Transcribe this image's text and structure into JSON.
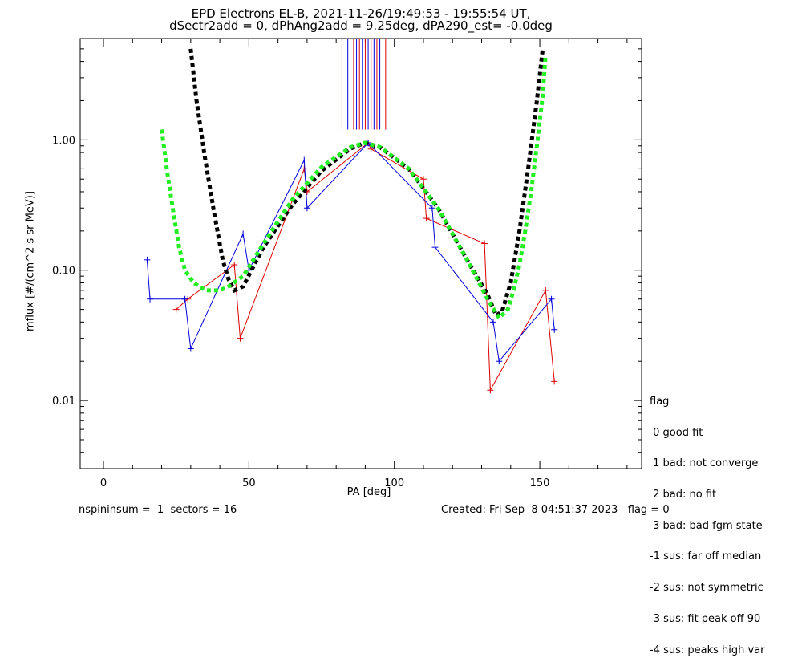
{
  "chart_data": {
    "type": "scatter",
    "title": "EPD Electrons EL-B, 2021-11-26/19:49:53 - 19:55:54 UT,",
    "subtitle": "dSectr2add = 0, dPhAng2add = 9.25deg, dPA290_est=  -0.0deg",
    "xlabel": "PA [deg]",
    "ylabel": "mflux [#/(cm^2 s sr MeV)]",
    "xlim": [
      -8,
      185
    ],
    "ylim": [
      0.003,
      6.0
    ],
    "yscale": "log",
    "xticks": [
      "0",
      "50",
      "100",
      "150"
    ],
    "yticks": [
      "0.01",
      "0.10",
      "1.00"
    ],
    "colors": {
      "red_series": "#dd0000",
      "blue_series": "#0000dd",
      "fit_black": "#000000",
      "fit_green": "#22ee22"
    },
    "series": [
      {
        "color": "red",
        "x": [
          25,
          29,
          45,
          47,
          69,
          70,
          91,
          92,
          110,
          111,
          131,
          133,
          152,
          155
        ],
        "y": [
          0.05,
          0.06,
          0.11,
          0.03,
          0.6,
          0.4,
          0.95,
          0.85,
          0.5,
          0.25,
          0.16,
          0.012,
          0.07,
          0.014
        ]
      },
      {
        "color": "blue",
        "x": [
          15,
          16,
          28,
          30,
          48,
          50,
          69,
          70,
          91,
          92,
          113,
          114,
          134,
          136,
          154,
          155
        ],
        "y": [
          0.12,
          0.06,
          0.06,
          0.025,
          0.19,
          0.1,
          0.7,
          0.3,
          0.95,
          0.9,
          0.3,
          0.15,
          0.04,
          0.02,
          0.06,
          0.035
        ]
      }
    ],
    "fits": [
      {
        "name": "black",
        "x": [
          30,
          32,
          35,
          38,
          41,
          43,
          45,
          48,
          55,
          65,
          75,
          85,
          90,
          95,
          105,
          115,
          125,
          132,
          135,
          137,
          140,
          143,
          146,
          149,
          151
        ],
        "y": [
          5.0,
          2.0,
          0.7,
          0.28,
          0.12,
          0.085,
          0.07,
          0.075,
          0.15,
          0.32,
          0.58,
          0.86,
          0.95,
          0.88,
          0.6,
          0.3,
          0.12,
          0.065,
          0.045,
          0.048,
          0.08,
          0.2,
          0.6,
          2.0,
          5.0
        ]
      },
      {
        "name": "green",
        "x": [
          20,
          22,
          24,
          26,
          28,
          31,
          35,
          40,
          43,
          48,
          55,
          65,
          75,
          85,
          90,
          95,
          105,
          115,
          125,
          132,
          136,
          139,
          141,
          143,
          145,
          147,
          149,
          151,
          152
        ],
        "y": [
          1.2,
          0.55,
          0.28,
          0.15,
          0.1,
          0.08,
          0.07,
          0.07,
          0.075,
          0.09,
          0.16,
          0.35,
          0.62,
          0.88,
          0.95,
          0.88,
          0.6,
          0.3,
          0.12,
          0.06,
          0.043,
          0.05,
          0.07,
          0.11,
          0.2,
          0.4,
          0.9,
          2.2,
          4.5
        ]
      }
    ],
    "fit_peak_lines_x": [
      82,
      84,
      86,
      87,
      88,
      89,
      90,
      91,
      92,
      93,
      94,
      95,
      97
    ]
  },
  "legend": {
    "title": "flag",
    "items": [
      " 0 good fit",
      " 1 bad: not converge",
      " 2 bad: no fit",
      " 3 bad: bad fgm state",
      "-1 sus: far off median",
      "-2 sus: not symmetric",
      "-3 sus: fit peak off 90",
      "-4 sus: peaks high var"
    ]
  },
  "footer": {
    "left": "nspininsum =  1  sectors = 16",
    "right": "Created: Fri Sep  8 04:51:37 2023   flag = 0"
  }
}
